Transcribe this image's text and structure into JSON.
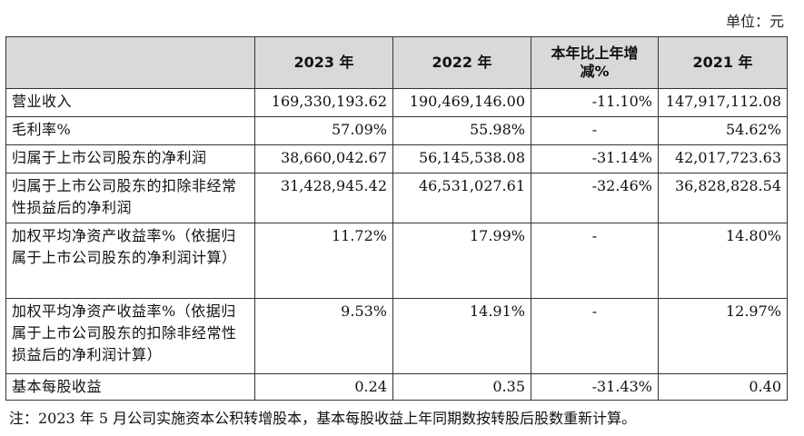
{
  "unit_label": "单位：元",
  "table": {
    "headers": [
      "",
      "2023 年",
      "2022 年",
      "本年比上年增减%",
      "2021 年"
    ],
    "rows": [
      {
        "label": "营业收入",
        "v2023": "169,330,193.62",
        "v2022": "190,469,146.00",
        "change": "-11.10%",
        "v2021": "147,917,112.08"
      },
      {
        "label": "毛利率%",
        "v2023": "57.09%",
        "v2022": "55.98%",
        "change": "-",
        "v2021": "54.62%"
      },
      {
        "label": "归属于上市公司股东的净利润",
        "v2023": "38,660,042.67",
        "v2022": "56,145,538.08",
        "change": "-31.14%",
        "v2021": "42,017,723.63"
      },
      {
        "label": "归属于上市公司股东的扣除非经常性损益后的净利润",
        "v2023": "31,428,945.42",
        "v2022": "46,531,027.61",
        "change": "-32.46%",
        "v2021": "36,828,828.54"
      },
      {
        "label": "加权平均净资产收益率%（依据归属于上市公司股东的净利润计算）",
        "v2023": "11.72%",
        "v2022": "17.99%",
        "change": "-",
        "v2021": "14.80%"
      },
      {
        "label": "加权平均净资产收益率%（依据归属于上市公司股东的扣除非经常性损益后的净利润计算）",
        "v2023": "9.53%",
        "v2022": "14.91%",
        "change": "-",
        "v2021": "12.97%"
      },
      {
        "label": "基本每股收益",
        "v2023": "0.24",
        "v2022": "0.35",
        "change": "-31.43%",
        "v2021": "0.40"
      }
    ]
  },
  "note": "注：2023 年 5 月公司实施资本公积转增股本，基本每股收益上年同期数按转股后股数重新计算。"
}
